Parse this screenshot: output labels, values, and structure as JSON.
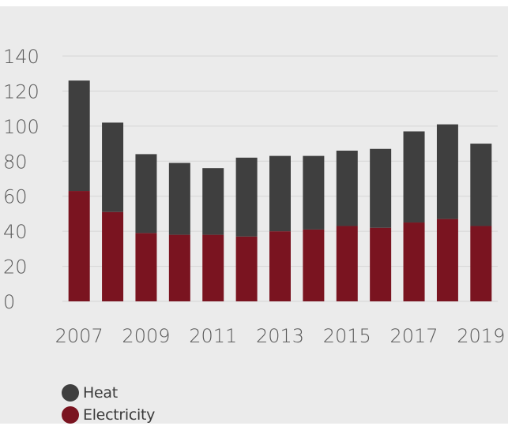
{
  "chart_data": {
    "type": "bar",
    "stacked": true,
    "categories": [
      "2007",
      "2008",
      "2009",
      "2010",
      "2011",
      "2012",
      "2013",
      "2014",
      "2015",
      "2016",
      "2017",
      "2018",
      "2019"
    ],
    "x_tick_labels": [
      "2007",
      "2009",
      "2011",
      "2013",
      "2015",
      "2017",
      "2019"
    ],
    "y_ticks": [
      0,
      20,
      40,
      60,
      80,
      100,
      120,
      140
    ],
    "y_tick_labels": [
      "0",
      "20",
      "40",
      "60",
      "80",
      "100",
      "120",
      "140"
    ],
    "ylim": [
      0,
      140
    ],
    "grid": true,
    "legend_placement": "bottom-left",
    "series": [
      {
        "name": "Electricity",
        "color": "#7a1420",
        "values": [
          63,
          51,
          39,
          38,
          38,
          37,
          40,
          41,
          43,
          42,
          45,
          47,
          43
        ]
      },
      {
        "name": "Heat",
        "color": "#3f3f3f",
        "values": [
          63,
          51,
          45,
          41,
          38,
          45,
          43,
          42,
          43,
          45,
          52,
          54,
          47
        ]
      }
    ]
  },
  "legend": {
    "items": [
      {
        "label": "Heat",
        "color": "#3f3f3f"
      },
      {
        "label": "Electricity",
        "color": "#7a1420"
      }
    ]
  }
}
